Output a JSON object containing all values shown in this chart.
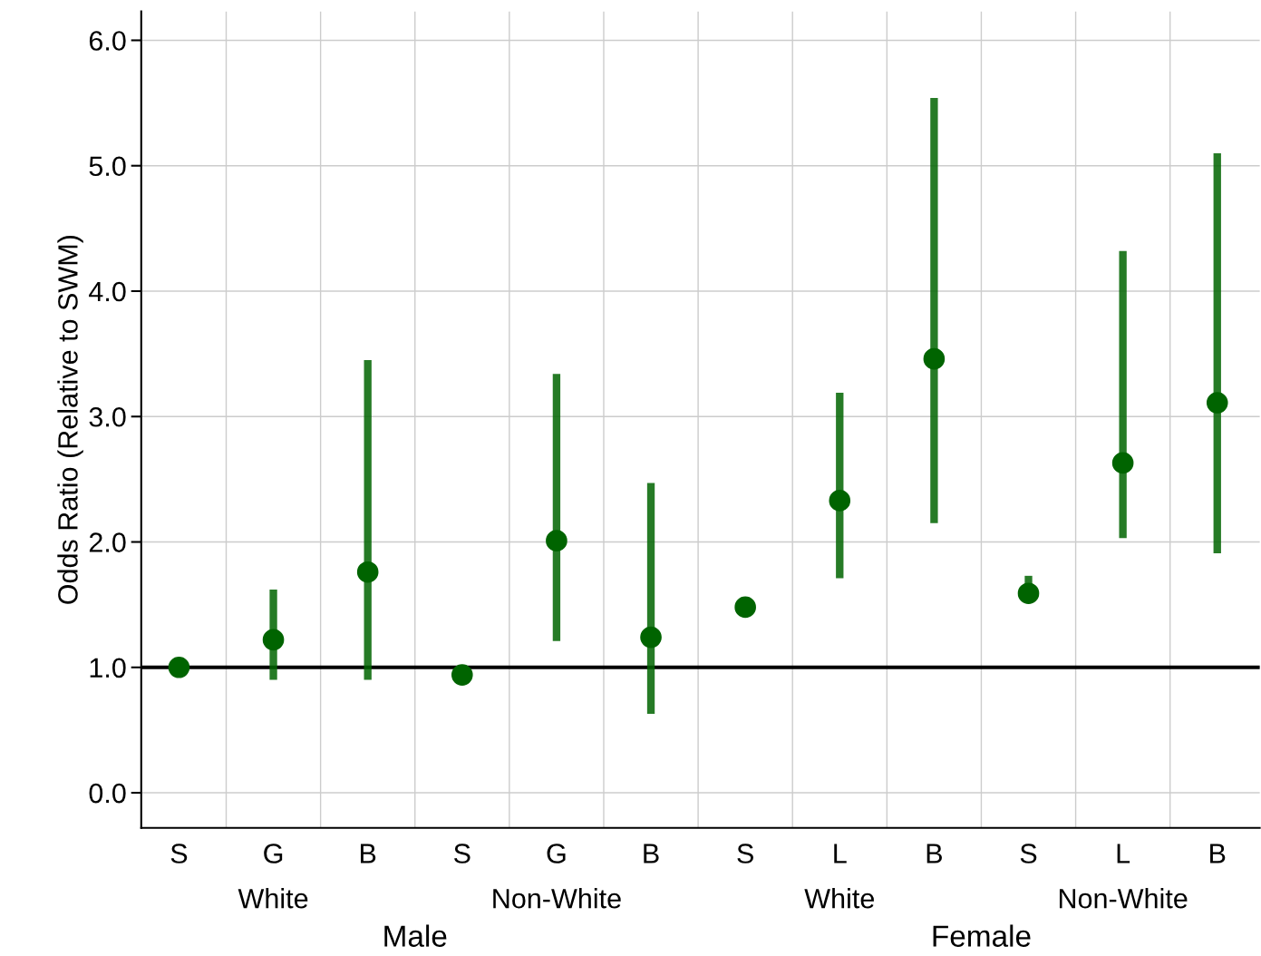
{
  "chart_data": {
    "type": "scatter",
    "ylabel": "Odds Ratio (Relative to SWM)",
    "categories": [
      "S",
      "G",
      "B",
      "S",
      "G",
      "B",
      "S",
      "L",
      "B",
      "S",
      "L",
      "B"
    ],
    "series": [
      {
        "color": "#006400",
        "values": [
          1.0,
          1.22,
          1.76,
          0.94,
          2.01,
          1.24,
          1.48,
          2.33,
          3.46,
          1.59,
          2.63,
          3.11
        ],
        "errors": [
          null,
          [
            0.9,
            1.62
          ],
          [
            0.9,
            3.45
          ],
          [
            0.88,
            0.94
          ],
          [
            1.21,
            3.34
          ],
          [
            0.63,
            2.47
          ],
          [
            1.41,
            1.55
          ],
          [
            1.71,
            3.19
          ],
          [
            2.15,
            5.54
          ],
          [
            1.59,
            1.73
          ],
          [
            2.03,
            4.32
          ],
          [
            1.91,
            5.1
          ]
        ]
      }
    ],
    "ylim": [
      -0.28,
      6.23
    ],
    "yticks": [
      {
        "value": 0,
        "label": "0.0"
      },
      {
        "value": 1,
        "label": "1.0"
      },
      {
        "value": 2,
        "label": "2.0"
      },
      {
        "value": 3,
        "label": "3.0"
      },
      {
        "value": 4,
        "label": "4.0"
      },
      {
        "value": 5,
        "label": "5.0"
      },
      {
        "value": 6,
        "label": "6.0"
      }
    ],
    "ref_lines": [
      {
        "axis": "y",
        "value": 1,
        "color": "#000000"
      }
    ],
    "annotations": [
      "White",
      "Non-White",
      "White",
      "Non-White",
      "Male",
      "Female"
    ],
    "grid": true,
    "marker": "circle"
  }
}
